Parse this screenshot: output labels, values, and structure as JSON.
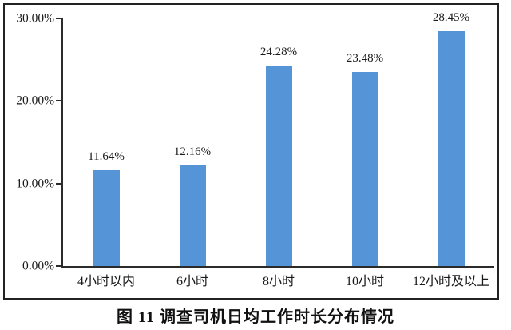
{
  "chart_data": {
    "type": "bar",
    "categories": [
      "4小时以内",
      "6小时",
      "8小时",
      "10小时",
      "12小时及以上"
    ],
    "values": [
      11.64,
      12.16,
      24.28,
      23.48,
      28.45
    ],
    "data_labels": [
      "11.64%",
      "12.16%",
      "24.28%",
      "23.48%",
      "28.45%"
    ],
    "title": "图 11 调查司机日均工作时长分布情况",
    "xlabel": "",
    "ylabel": "",
    "ylim": [
      0,
      30
    ],
    "y_ticks": [
      {
        "label": "30.00%",
        "value": 30
      },
      {
        "label": "20.00%",
        "value": 20
      },
      {
        "label": "10.00%",
        "value": 10
      },
      {
        "label": "0.00%",
        "value": 0
      }
    ],
    "grid": false,
    "legend_position": "none",
    "bar_color": "#5594D6",
    "axis_color": "#2b2b2b",
    "frame_border_color": "#222222",
    "background_color": "#ffffff"
  },
  "caption": {
    "text": "图 11 调查司机日均工作时长分布情况"
  }
}
